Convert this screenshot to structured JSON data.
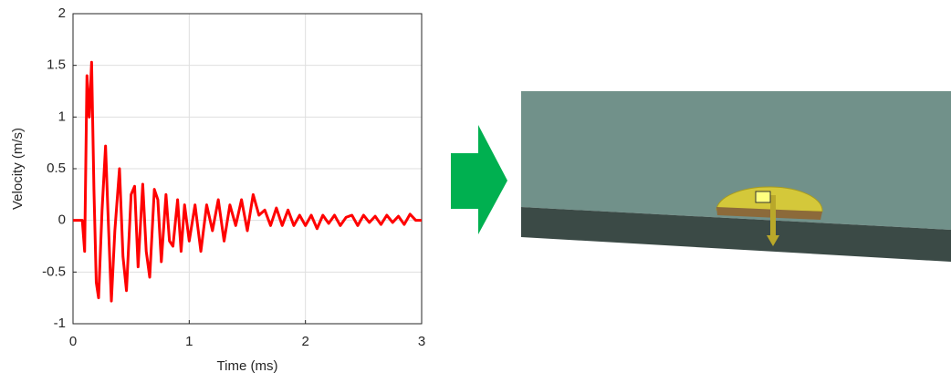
{
  "chart_data": {
    "type": "line",
    "x_label": "Time (ms)",
    "y_label": "Velocity (m/s)",
    "x": [
      0,
      0.08,
      0.1,
      0.12,
      0.14,
      0.16,
      0.18,
      0.2,
      0.22,
      0.25,
      0.28,
      0.3,
      0.33,
      0.36,
      0.4,
      0.43,
      0.46,
      0.5,
      0.53,
      0.56,
      0.6,
      0.63,
      0.66,
      0.7,
      0.73,
      0.76,
      0.8,
      0.83,
      0.86,
      0.9,
      0.93,
      0.96,
      1.0,
      1.05,
      1.1,
      1.15,
      1.2,
      1.25,
      1.3,
      1.35,
      1.4,
      1.45,
      1.5,
      1.55,
      1.6,
      1.65,
      1.7,
      1.75,
      1.8,
      1.85,
      1.9,
      1.95,
      2.0,
      2.05,
      2.1,
      2.15,
      2.2,
      2.25,
      2.3,
      2.35,
      2.4,
      2.45,
      2.5,
      2.55,
      2.6,
      2.65,
      2.7,
      2.75,
      2.8,
      2.85,
      2.9,
      2.95,
      3.0
    ],
    "values": [
      0,
      0,
      -0.3,
      1.4,
      1.0,
      1.53,
      0.3,
      -0.6,
      -0.75,
      0.1,
      0.72,
      0.1,
      -0.78,
      -0.1,
      0.5,
      -0.35,
      -0.68,
      0.25,
      0.33,
      -0.45,
      0.35,
      -0.3,
      -0.55,
      0.3,
      0.2,
      -0.4,
      0.25,
      -0.2,
      -0.25,
      0.2,
      -0.3,
      0.15,
      -0.2,
      0.15,
      -0.3,
      0.15,
      -0.1,
      0.2,
      -0.2,
      0.15,
      -0.05,
      0.2,
      -0.1,
      0.25,
      0.05,
      0.1,
      -0.05,
      0.12,
      -0.05,
      0.1,
      -0.05,
      0.05,
      -0.05,
      0.05,
      -0.08,
      0.05,
      -0.03,
      0.05,
      -0.05,
      0.03,
      0.05,
      -0.05,
      0.05,
      -0.02,
      0.04,
      -0.04,
      0.05,
      -0.02,
      0.04,
      -0.04,
      0.06,
      0,
      0
    ],
    "color": "#ff0000",
    "xlim": [
      0,
      3
    ],
    "xticks": [
      0,
      1,
      2,
      3
    ],
    "ylim": [
      -1,
      2
    ],
    "yticks": [
      -1,
      -0.5,
      0,
      0.5,
      1,
      1.5,
      2
    ],
    "grid": true
  }
}
